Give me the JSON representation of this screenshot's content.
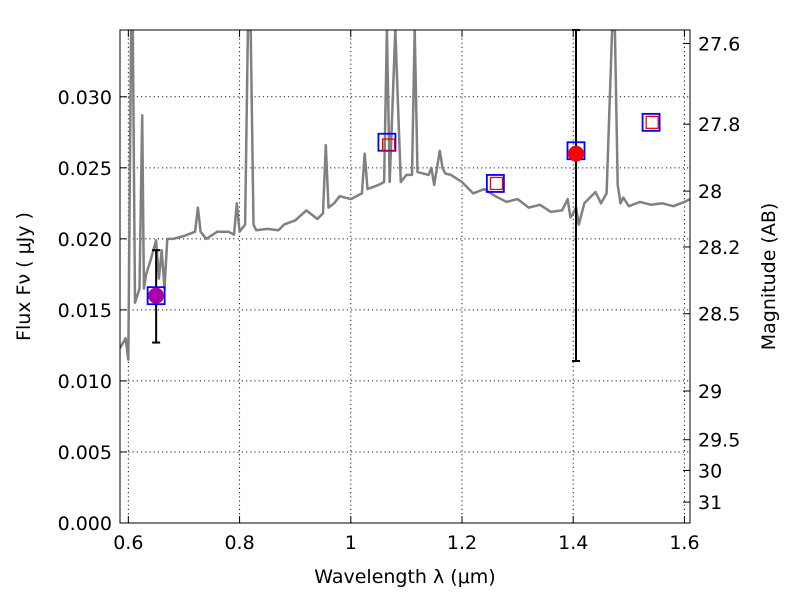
{
  "chart_data": {
    "type": "line",
    "title": "",
    "xlabel": "Wavelength  λ (μm)",
    "ylabel": "Flux  Fν  ( μJy )",
    "ylabel_right": "Magnitude (AB)",
    "xlim": [
      0.585,
      1.61
    ],
    "ylim": [
      0.0,
      0.0347
    ],
    "grid": true,
    "x_ticks": [
      0.6,
      0.8,
      1.0,
      1.2,
      1.4,
      1.6
    ],
    "x_tick_labels": [
      "0.6",
      "0.8",
      "1",
      "1.2",
      "1.4",
      "1.6"
    ],
    "y_ticks": [
      0.0,
      0.005,
      0.01,
      0.015,
      0.02,
      0.025,
      0.03
    ],
    "y_tick_labels": [
      "0.000",
      "0.005",
      "0.010",
      "0.015",
      "0.020",
      "0.025",
      "0.030"
    ],
    "magnitude_ticks": [
      {
        "label": "27.6",
        "flux": 0.03375
      },
      {
        "label": "27.8",
        "flux": 0.02807
      },
      {
        "label": "28",
        "flux": 0.02336
      },
      {
        "label": "28.2",
        "flux": 0.01943
      },
      {
        "label": "28.5",
        "flux": 0.01473
      },
      {
        "label": "29",
        "flux": 0.00929
      },
      {
        "label": "29.5",
        "flux": 0.00586
      },
      {
        "label": "30",
        "flux": 0.0037
      },
      {
        "label": "31",
        "flux": 0.00147
      }
    ],
    "series": [
      {
        "name": "model spectrum",
        "color": "#808080",
        "x": [
          0.585,
          0.595,
          0.6,
          0.605,
          0.608,
          0.612,
          0.62,
          0.625,
          0.628,
          0.632,
          0.64,
          0.65,
          0.655,
          0.66,
          0.665,
          0.67,
          0.68,
          0.7,
          0.72,
          0.725,
          0.73,
          0.74,
          0.76,
          0.78,
          0.79,
          0.795,
          0.8,
          0.81,
          0.815,
          0.82,
          0.825,
          0.83,
          0.85,
          0.87,
          0.88,
          0.9,
          0.92,
          0.94,
          0.95,
          0.955,
          0.96,
          0.97,
          0.98,
          1.0,
          1.02,
          1.025,
          1.03,
          1.05,
          1.06,
          1.065,
          1.07,
          1.08,
          1.09,
          1.1,
          1.11,
          1.115,
          1.12,
          1.14,
          1.145,
          1.15,
          1.155,
          1.16,
          1.165,
          1.17,
          1.18,
          1.2,
          1.22,
          1.24,
          1.26,
          1.28,
          1.3,
          1.32,
          1.34,
          1.36,
          1.38,
          1.39,
          1.395,
          1.4,
          1.405,
          1.41,
          1.42,
          1.44,
          1.45,
          1.46,
          1.47,
          1.475,
          1.48,
          1.485,
          1.49,
          1.5,
          1.52,
          1.54,
          1.56,
          1.58,
          1.6,
          1.61
        ],
        "y": [
          0.0123,
          0.013,
          0.0115,
          0.0347,
          0.0347,
          0.0155,
          0.0165,
          0.0287,
          0.0165,
          0.0175,
          0.0185,
          0.0199,
          0.0172,
          0.0192,
          0.0165,
          0.02,
          0.02,
          0.0202,
          0.0205,
          0.0222,
          0.0205,
          0.02,
          0.0205,
          0.0205,
          0.0203,
          0.0225,
          0.0205,
          0.021,
          0.0347,
          0.0347,
          0.021,
          0.0206,
          0.0207,
          0.0206,
          0.021,
          0.0213,
          0.022,
          0.0214,
          0.0218,
          0.0266,
          0.0222,
          0.0225,
          0.023,
          0.0228,
          0.0232,
          0.026,
          0.0235,
          0.0238,
          0.024,
          0.0347,
          0.024,
          0.0347,
          0.024,
          0.0245,
          0.0245,
          0.0347,
          0.0247,
          0.0245,
          0.025,
          0.0238,
          0.025,
          0.0262,
          0.025,
          0.0246,
          0.0245,
          0.024,
          0.0232,
          0.0235,
          0.023,
          0.0226,
          0.0228,
          0.0222,
          0.0224,
          0.0219,
          0.022,
          0.0228,
          0.0215,
          0.0218,
          0.0222,
          0.021,
          0.0225,
          0.0233,
          0.0225,
          0.0232,
          0.0347,
          0.0347,
          0.0238,
          0.0225,
          0.0229,
          0.0223,
          0.0226,
          0.0224,
          0.0225,
          0.0223,
          0.0226,
          0.0228
        ]
      },
      {
        "name": "model photometry",
        "marker": "square",
        "color": "#0000ff",
        "x": [
          0.65,
          1.065,
          1.26,
          1.405,
          1.54
        ],
        "y": [
          0.016,
          0.0268,
          0.0239,
          0.0262,
          0.0282
        ]
      },
      {
        "name": "observed photometry",
        "marker": "circle",
        "color": "#ff0000",
        "x": [
          0.65,
          1.405
        ],
        "y": [
          0.016,
          0.026
        ],
        "yerr_low": [
          0.0127,
          0.0114
        ],
        "yerr_high": [
          0.0192,
          0.0347
        ]
      },
      {
        "name": "open markers",
        "marker": "open-square",
        "color": "#ff0000",
        "x": [
          1.068,
          1.262,
          1.542
        ],
        "y": [
          0.0266,
          0.0239,
          0.0282
        ]
      }
    ]
  }
}
